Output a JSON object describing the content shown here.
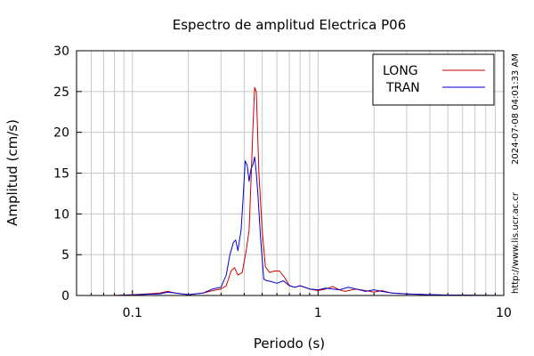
{
  "chart_data": {
    "type": "line",
    "title": "Espectro de amplitud Electrica P06",
    "xlabel": "Periodo (s)",
    "ylabel": "Amplitud (cm/s)",
    "x_scale": "log",
    "xlim": [
      0.05,
      10
    ],
    "ylim": [
      0,
      30
    ],
    "x_ticks": [
      0.1,
      1,
      10
    ],
    "x_tick_labels": [
      "0.1",
      "1",
      "10"
    ],
    "y_ticks": [
      0,
      5,
      10,
      15,
      20,
      25,
      30
    ],
    "y_tick_labels": [
      "0",
      "5",
      "10",
      "15",
      "20",
      "25",
      "30"
    ],
    "grid": true,
    "legend_position": "top-right",
    "side_text": [
      "2024-07-08 04:01:33 AM",
      "http://www.lis.ucr.ac.cr"
    ],
    "series": [
      {
        "name": "LONG",
        "color": "#cc0000",
        "points": [
          [
            0.05,
            0
          ],
          [
            0.08,
            0
          ],
          [
            0.1,
            0.1
          ],
          [
            0.12,
            0.2
          ],
          [
            0.14,
            0.3
          ],
          [
            0.155,
            0.5
          ],
          [
            0.17,
            0.3
          ],
          [
            0.2,
            0.1
          ],
          [
            0.24,
            0.3
          ],
          [
            0.27,
            0.6
          ],
          [
            0.3,
            0.8
          ],
          [
            0.32,
            1.2
          ],
          [
            0.34,
            3.0
          ],
          [
            0.355,
            3.4
          ],
          [
            0.37,
            2.5
          ],
          [
            0.39,
            2.8
          ],
          [
            0.41,
            5.5
          ],
          [
            0.425,
            8.0
          ],
          [
            0.435,
            14.0
          ],
          [
            0.445,
            20.0
          ],
          [
            0.455,
            25.5
          ],
          [
            0.465,
            25.0
          ],
          [
            0.48,
            15.0
          ],
          [
            0.5,
            8.0
          ],
          [
            0.52,
            3.5
          ],
          [
            0.55,
            2.8
          ],
          [
            0.58,
            3.0
          ],
          [
            0.62,
            3.0
          ],
          [
            0.66,
            2.2
          ],
          [
            0.7,
            1.2
          ],
          [
            0.75,
            1.0
          ],
          [
            0.8,
            1.2
          ],
          [
            0.9,
            0.8
          ],
          [
            1.0,
            0.6
          ],
          [
            1.1,
            0.8
          ],
          [
            1.2,
            1.1
          ],
          [
            1.3,
            0.7
          ],
          [
            1.4,
            0.5
          ],
          [
            1.6,
            0.8
          ],
          [
            1.8,
            0.6
          ],
          [
            2.0,
            0.4
          ],
          [
            2.2,
            0.6
          ],
          [
            2.5,
            0.3
          ],
          [
            3.0,
            0.2
          ],
          [
            4.0,
            0.1
          ],
          [
            5.0,
            0.05
          ],
          [
            7.0,
            0.02
          ],
          [
            10.0,
            0
          ]
        ]
      },
      {
        "name": "TRAN",
        "color": "#0000cc",
        "points": [
          [
            0.05,
            0
          ],
          [
            0.08,
            0
          ],
          [
            0.1,
            0.05
          ],
          [
            0.12,
            0.15
          ],
          [
            0.14,
            0.2
          ],
          [
            0.155,
            0.4
          ],
          [
            0.17,
            0.3
          ],
          [
            0.2,
            0.1
          ],
          [
            0.24,
            0.3
          ],
          [
            0.27,
            0.8
          ],
          [
            0.3,
            1.0
          ],
          [
            0.32,
            2.5
          ],
          [
            0.335,
            5.0
          ],
          [
            0.35,
            6.5
          ],
          [
            0.36,
            6.8
          ],
          [
            0.37,
            5.5
          ],
          [
            0.385,
            8.0
          ],
          [
            0.395,
            12.0
          ],
          [
            0.405,
            16.5
          ],
          [
            0.415,
            16.0
          ],
          [
            0.425,
            14.0
          ],
          [
            0.435,
            15.5
          ],
          [
            0.445,
            16.0
          ],
          [
            0.455,
            17.0
          ],
          [
            0.465,
            15.0
          ],
          [
            0.475,
            12.0
          ],
          [
            0.49,
            7.0
          ],
          [
            0.5,
            4.5
          ],
          [
            0.51,
            2.0
          ],
          [
            0.53,
            1.8
          ],
          [
            0.56,
            1.7
          ],
          [
            0.6,
            1.5
          ],
          [
            0.65,
            1.8
          ],
          [
            0.7,
            1.2
          ],
          [
            0.75,
            1.0
          ],
          [
            0.8,
            1.2
          ],
          [
            0.9,
            0.8
          ],
          [
            1.0,
            0.7
          ],
          [
            1.1,
            0.9
          ],
          [
            1.2,
            0.8
          ],
          [
            1.3,
            0.7
          ],
          [
            1.45,
            1.0
          ],
          [
            1.6,
            0.8
          ],
          [
            1.8,
            0.5
          ],
          [
            2.0,
            0.7
          ],
          [
            2.2,
            0.5
          ],
          [
            2.5,
            0.3
          ],
          [
            3.0,
            0.2
          ],
          [
            4.0,
            0.1
          ],
          [
            5.0,
            0.05
          ],
          [
            7.0,
            0.02
          ],
          [
            10.0,
            0
          ]
        ]
      }
    ]
  }
}
